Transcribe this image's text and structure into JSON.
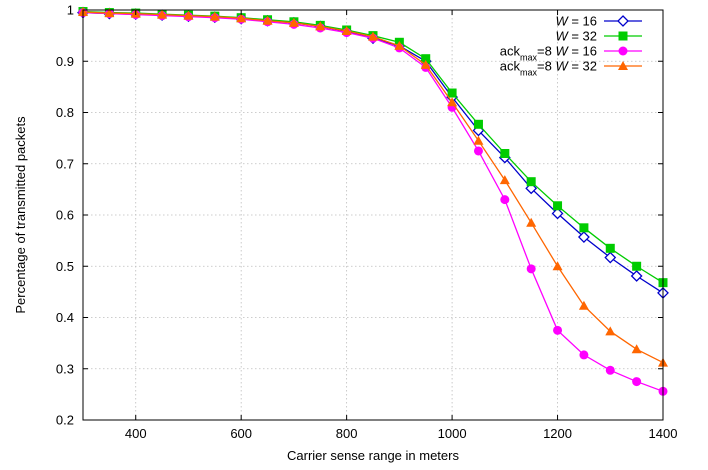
{
  "chart_data": {
    "type": "line",
    "xlabel": "Carrier sense range in meters",
    "ylabel": "Percentage of transmitted packets",
    "xlim": [
      300,
      1400
    ],
    "ylim": [
      0.2,
      1.0
    ],
    "xticks": [
      400,
      600,
      800,
      1000,
      1200,
      1400
    ],
    "yticks": [
      0.2,
      0.3,
      0.4,
      0.5,
      0.6,
      0.7,
      0.8,
      0.9,
      1
    ],
    "grid": true,
    "legend_position": "top-right",
    "x": [
      300,
      350,
      400,
      450,
      500,
      550,
      600,
      650,
      700,
      750,
      800,
      850,
      900,
      950,
      1000,
      1050,
      1100,
      1150,
      1200,
      1250,
      1300,
      1350,
      1400
    ],
    "series": [
      {
        "name": "W = 16",
        "legend": {
          "prefix": "",
          "sub": "",
          "suffix": "",
          "var": "W",
          "rest": " = 16"
        },
        "color": "#0000cc",
        "marker": "diamond-open",
        "values": [
          0.995,
          0.993,
          0.992,
          0.99,
          0.988,
          0.986,
          0.983,
          0.979,
          0.975,
          0.968,
          0.958,
          0.945,
          0.93,
          0.9,
          0.83,
          0.765,
          0.712,
          0.652,
          0.603,
          0.557,
          0.517,
          0.481,
          0.448
        ]
      },
      {
        "name": "W = 32",
        "legend": {
          "prefix": "",
          "sub": "",
          "suffix": "",
          "var": "W",
          "rest": " = 32"
        },
        "color": "#00cc00",
        "marker": "square",
        "values": [
          0.997,
          0.995,
          0.994,
          0.992,
          0.99,
          0.988,
          0.985,
          0.981,
          0.977,
          0.97,
          0.961,
          0.95,
          0.937,
          0.905,
          0.838,
          0.777,
          0.72,
          0.665,
          0.618,
          0.575,
          0.535,
          0.5,
          0.468
        ]
      },
      {
        "name": "ackmax=8 W = 16",
        "legend": {
          "prefix": "ack",
          "sub": "max",
          "suffix": "=8",
          "var": "W",
          "rest": " = 16"
        },
        "color": "#ff00ff",
        "marker": "circle",
        "values": [
          0.995,
          0.993,
          0.991,
          0.989,
          0.987,
          0.985,
          0.982,
          0.977,
          0.972,
          0.965,
          0.956,
          0.945,
          0.926,
          0.888,
          0.81,
          0.725,
          0.63,
          0.495,
          0.375,
          0.327,
          0.297,
          0.275,
          0.256
        ]
      },
      {
        "name": "ackmax=8 W = 32",
        "legend": {
          "prefix": "ack",
          "sub": "max",
          "suffix": "=8",
          "var": "W",
          "rest": " = 32"
        },
        "color": "#ff6600",
        "marker": "triangle",
        "values": [
          0.996,
          0.994,
          0.993,
          0.991,
          0.989,
          0.987,
          0.984,
          0.979,
          0.975,
          0.968,
          0.959,
          0.948,
          0.93,
          0.893,
          0.82,
          0.745,
          0.668,
          0.585,
          0.5,
          0.423,
          0.373,
          0.338,
          0.312
        ]
      }
    ]
  }
}
